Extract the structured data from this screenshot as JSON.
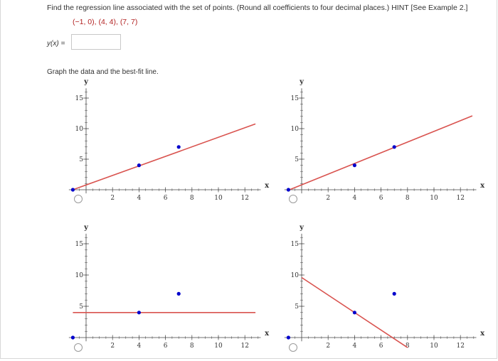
{
  "question": {
    "text": "Find the regression line associated with the set of points. (Round all coefficients to four decimal places.) HINT [See Example 2.]",
    "points_text": "(−1, 0), (4, 4), (7, 7)"
  },
  "answer": {
    "label": "y(x) =",
    "value": ""
  },
  "graph_prompt": "Graph the data and the best-fit line.",
  "colors": {
    "line": "#d9534f",
    "point": "#0000cc",
    "axis": "#444444"
  },
  "chart_data": [
    {
      "type": "scatter",
      "choice": 1,
      "xlabel": "x",
      "ylabel": "y",
      "xlim": [
        -1,
        13
      ],
      "ylim": [
        -1,
        17
      ],
      "x_ticks": [
        2,
        4,
        6,
        8,
        10,
        12
      ],
      "y_ticks": [
        5,
        10,
        15
      ],
      "points": [
        [
          -1,
          0
        ],
        [
          4,
          4
        ],
        [
          7,
          7
        ]
      ],
      "line": {
        "slope": 0.78,
        "intercept": 0.78,
        "x_range": [
          -1,
          12.8
        ]
      }
    },
    {
      "type": "scatter",
      "choice": 2,
      "xlabel": "x",
      "ylabel": "y",
      "xlim": [
        -1,
        13
      ],
      "ylim": [
        -1,
        17
      ],
      "x_ticks": [
        2,
        4,
        6,
        8,
        10,
        12
      ],
      "y_ticks": [
        5,
        10,
        15
      ],
      "points": [
        [
          -1,
          0
        ],
        [
          4,
          4
        ],
        [
          7,
          7
        ]
      ],
      "line": {
        "slope": 0.875,
        "intercept": 0.8,
        "x_range": [
          -1,
          12.9
        ]
      }
    },
    {
      "type": "scatter",
      "choice": 3,
      "xlabel": "x",
      "ylabel": "y",
      "xlim": [
        -1,
        13
      ],
      "ylim": [
        -1,
        17
      ],
      "x_ticks": [
        2,
        4,
        6,
        8,
        10,
        12
      ],
      "y_ticks": [
        5,
        10,
        15
      ],
      "points": [
        [
          -1,
          0
        ],
        [
          4,
          4
        ],
        [
          7,
          7
        ]
      ],
      "line": {
        "slope": 0,
        "intercept": 4,
        "x_range": [
          -1,
          12.8
        ]
      }
    },
    {
      "type": "scatter",
      "choice": 4,
      "xlabel": "x",
      "ylabel": "y",
      "xlim": [
        -1,
        13
      ],
      "ylim": [
        -1,
        17
      ],
      "x_ticks": [
        2,
        4,
        6,
        8,
        10,
        12
      ],
      "y_ticks": [
        5,
        10,
        15
      ],
      "points": [
        [
          -1,
          0
        ],
        [
          4,
          4
        ],
        [
          7,
          7
        ]
      ],
      "line": {
        "slope": -1.4,
        "intercept": 9.6,
        "x_range": [
          0,
          8
        ]
      }
    }
  ]
}
